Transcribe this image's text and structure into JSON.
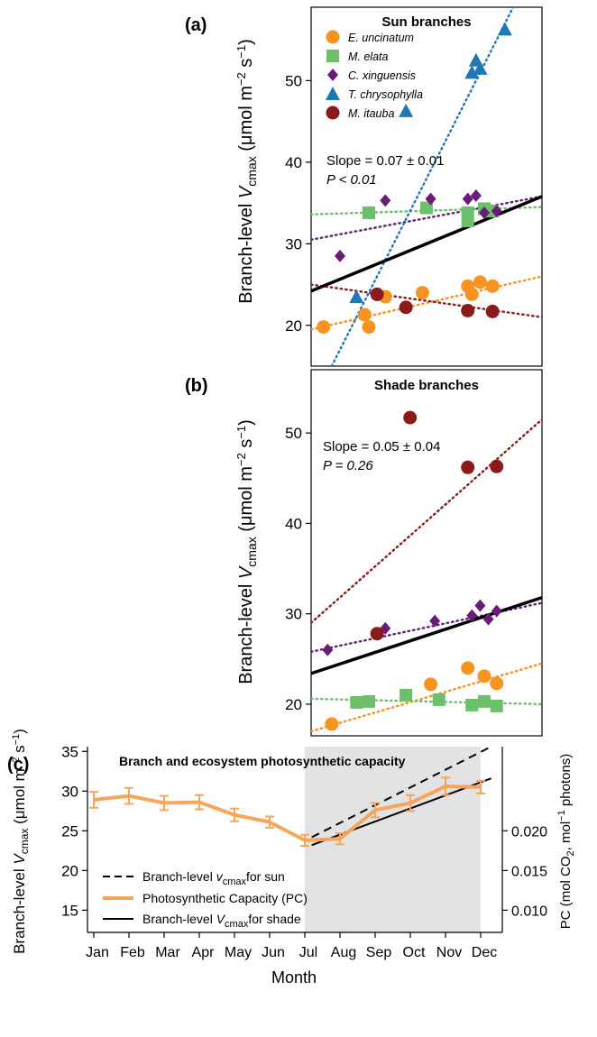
{
  "chart_data": [
    {
      "panel": "(a)",
      "type": "scatter",
      "title": "Sun branches",
      "ylabel": "Branch-level Vcmax (μmol m−2 s−1)",
      "ylim": [
        15,
        59
      ],
      "x_range": [
        0.6,
        6.2
      ],
      "yticks": [
        20,
        30,
        40,
        50
      ],
      "grid": false,
      "legend_position": "top-left",
      "annotation": {
        "slope": "Slope = 0.07 ± 0.01",
        "p": "P < 0.01"
      },
      "series": [
        {
          "name": "E. uncinatum",
          "marker": "circle",
          "color": "#F7931E",
          "points": [
            [
              0.9,
              19.8
            ],
            [
              1.9,
              21.3
            ],
            [
              2.0,
              19.8
            ],
            [
              2.4,
              23.5
            ],
            [
              3.3,
              24.0
            ],
            [
              4.4,
              24.8
            ],
            [
              4.5,
              23.8
            ],
            [
              4.7,
              25.3
            ],
            [
              5.0,
              24.8
            ]
          ],
          "fit": [
            [
              0.6,
              19.5
            ],
            [
              6.2,
              26.0
            ]
          ]
        },
        {
          "name": "M. elata",
          "marker": "square",
          "color": "#6CC06B",
          "points": [
            [
              2.0,
              33.8
            ],
            [
              3.4,
              34.4
            ],
            [
              4.4,
              33.8
            ],
            [
              4.4,
              32.8
            ],
            [
              4.8,
              34.3
            ],
            [
              5.0,
              34.0
            ]
          ],
          "fit": [
            [
              0.6,
              33.6
            ],
            [
              6.2,
              34.5
            ]
          ]
        },
        {
          "name": "C. xinguensis",
          "marker": "diamond",
          "color": "#6A1B7A",
          "points": [
            [
              1.3,
              28.5
            ],
            [
              2.4,
              35.3
            ],
            [
              3.5,
              35.5
            ],
            [
              4.4,
              35.5
            ],
            [
              4.6,
              35.9
            ],
            [
              4.8,
              33.8
            ],
            [
              5.1,
              34.0
            ]
          ],
          "fit": [
            [
              0.6,
              30.5
            ],
            [
              6.2,
              35.8
            ]
          ]
        },
        {
          "name": "T. chrysophylla",
          "marker": "triangle",
          "color": "#1F77B4",
          "points": [
            [
              1.7,
              23.5
            ],
            [
              2.9,
              46.3
            ],
            [
              4.5,
              51.0
            ],
            [
              4.6,
              52.5
            ],
            [
              4.7,
              51.5
            ],
            [
              5.3,
              56.3
            ]
          ],
          "fit": [
            [
              1.1,
              15.0
            ],
            [
              5.5,
              59.0
            ]
          ]
        },
        {
          "name": "M. itauba",
          "marker": "circle",
          "color": "#8B1A1A",
          "points": [
            [
              2.2,
              23.8
            ],
            [
              2.9,
              22.2
            ],
            [
              4.4,
              21.8
            ],
            [
              5.0,
              21.7
            ]
          ],
          "fit": [
            [
              0.6,
              25.0
            ],
            [
              6.2,
              21.0
            ]
          ]
        }
      ],
      "overall_fit": [
        [
          0.6,
          24.2
        ],
        [
          6.2,
          35.8
        ]
      ]
    },
    {
      "panel": "(b)",
      "type": "scatter",
      "title": "Shade branches",
      "ylabel": "Branch-level Vcmax (μmol m−2 s−1)",
      "ylim": [
        16.5,
        57
      ],
      "x_range": [
        0.6,
        6.2
      ],
      "yticks": [
        20,
        30,
        40,
        50
      ],
      "grid": false,
      "annotation": {
        "slope": "Slope = 0.05 ± 0.04",
        "p": "P = 0.26"
      },
      "series": [
        {
          "name": "E. uncinatum",
          "marker": "circle",
          "color": "#F7931E",
          "points": [
            [
              1.1,
              17.8
            ],
            [
              3.5,
              22.2
            ],
            [
              4.4,
              24.0
            ],
            [
              4.8,
              23.1
            ],
            [
              5.1,
              22.3
            ]
          ],
          "fit": [
            [
              0.6,
              17.0
            ],
            [
              6.2,
              24.5
            ]
          ]
        },
        {
          "name": "M. elata",
          "marker": "square",
          "color": "#6CC06B",
          "points": [
            [
              1.7,
              20.2
            ],
            [
              2.0,
              20.3
            ],
            [
              2.9,
              21.0
            ],
            [
              3.7,
              20.5
            ],
            [
              4.5,
              19.9
            ],
            [
              4.8,
              20.3
            ],
            [
              5.1,
              19.8
            ]
          ],
          "fit": [
            [
              0.6,
              20.6
            ],
            [
              6.2,
              20.0
            ]
          ]
        },
        {
          "name": "C. xinguensis",
          "marker": "diamond",
          "color": "#6A1B7A",
          "points": [
            [
              1.0,
              26.0
            ],
            [
              2.4,
              28.4
            ],
            [
              3.6,
              29.2
            ],
            [
              4.5,
              29.8
            ],
            [
              4.7,
              30.9
            ],
            [
              4.9,
              29.4
            ],
            [
              5.1,
              30.3
            ]
          ],
          "fit": [
            [
              0.6,
              25.8
            ],
            [
              6.2,
              31.2
            ]
          ]
        },
        {
          "name": "M. itauba",
          "marker": "circle",
          "color": "#8B1A1A",
          "points": [
            [
              2.2,
              27.8
            ],
            [
              3.0,
              51.7
            ],
            [
              4.4,
              46.2
            ],
            [
              5.1,
              46.3
            ]
          ],
          "fit": [
            [
              0.6,
              29.0
            ],
            [
              6.2,
              51.5
            ]
          ]
        }
      ],
      "overall_fit": [
        [
          0.6,
          23.4
        ],
        [
          6.2,
          31.8
        ]
      ]
    },
    {
      "panel": "(c)",
      "type": "line",
      "title": "Branch and ecosystem photosynthetic capacity",
      "xlabel": "Month",
      "ylabel": "Branch-level Vcmax (μmol m−2 s−1)",
      "ylabel_right": "PC (mol CO2 mol−1 photons)",
      "categories": [
        "Jan",
        "Feb",
        "Mar",
        "Apr",
        "May",
        "Jun",
        "Jul",
        "Aug",
        "Sep",
        "Oct",
        "Nov",
        "Dec"
      ],
      "ylim": [
        12.2,
        35.6
      ],
      "yticks": [
        15,
        20,
        25,
        30,
        35
      ],
      "right_ticks": [
        {
          "label": "0.010",
          "at_left_value": 15
        },
        {
          "label": "0.015",
          "at_left_value": 20
        },
        {
          "label": "0.020",
          "at_left_value": 25
        }
      ],
      "shaded_months": [
        "Jul",
        "Dec"
      ],
      "legend_position": "bottom-left",
      "series": [
        {
          "name": "Photosynthetic Capacity (PC)",
          "color": "#F5A65B",
          "style": "solid-thick",
          "values": [
            28.9,
            29.4,
            28.5,
            28.6,
            27.0,
            26.1,
            23.8,
            24.0,
            27.6,
            28.5,
            30.6,
            30.5
          ],
          "errors": [
            1.0,
            1.0,
            0.9,
            0.9,
            0.8,
            0.7,
            0.7,
            0.7,
            0.9,
            1.0,
            1.1,
            0.8
          ]
        },
        {
          "name": "Branch-level vcmax for sun",
          "color": "#000000",
          "style": "dashed",
          "line": [
            [
              7.2,
              24.2
            ],
            [
              12.3,
              35.6
            ]
          ]
        },
        {
          "name": "Branch-level vcmax for shade",
          "color": "#000000",
          "style": "solid",
          "line": [
            [
              7.2,
              23.2
            ],
            [
              12.3,
              31.6
            ]
          ]
        }
      ]
    }
  ],
  "labels": {
    "panel_a": "(a)",
    "panel_b": "(b)",
    "panel_c": "(c)",
    "legend_sun": "Branch-level ",
    "legend_pc": "Photosynthetic Capacity (PC)",
    "legend_shade": "Branch-level "
  }
}
